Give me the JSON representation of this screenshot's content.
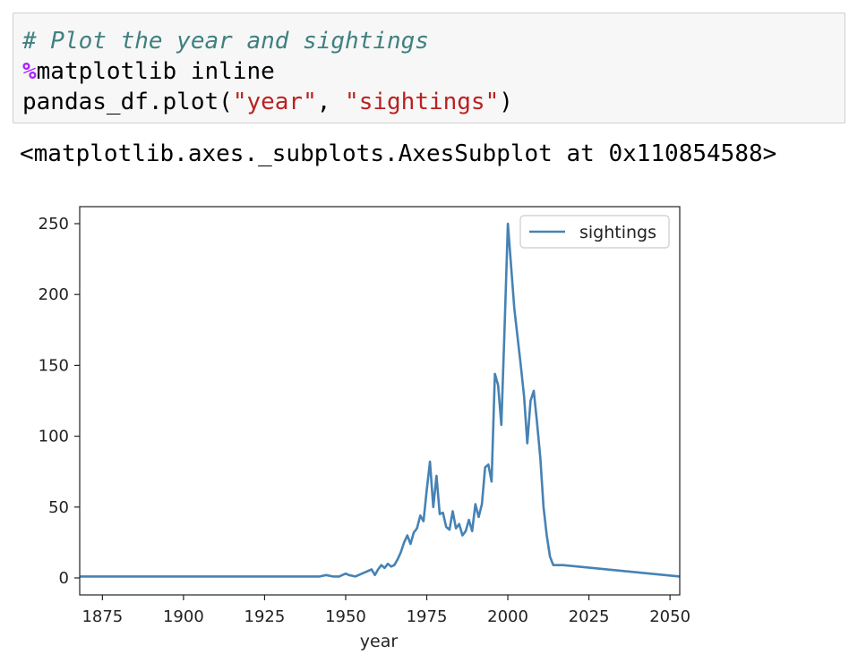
{
  "code": {
    "comment": "# Plot the year and sightings",
    "magic_symbol": "%",
    "magic_rest": "matplotlib inline",
    "call_prefix": "pandas_df.plot(",
    "arg1": "\"year\"",
    "sep": ", ",
    "arg2": "\"sightings\"",
    "call_suffix": ")"
  },
  "output": {
    "text": "<matplotlib.axes._subplots.AxesSubplot at 0x110854588>"
  },
  "chart_data": {
    "type": "line",
    "xlabel": "year",
    "ylabel": "",
    "xlim": [
      1868,
      2053
    ],
    "ylim": [
      -12,
      262
    ],
    "xticks": [
      1875,
      1900,
      1925,
      1950,
      1975,
      2000,
      2025,
      2050
    ],
    "yticks": [
      0,
      50,
      100,
      150,
      200,
      250
    ],
    "line_color": "#4682b4",
    "legend_position": "top-right",
    "series": [
      {
        "name": "sightings",
        "x": [
          1868,
          1942,
          1944,
          1946,
          1948,
          1950,
          1951,
          1953,
          1955,
          1956,
          1958,
          1959,
          1960,
          1961,
          1962,
          1963,
          1964,
          1965,
          1966,
          1967,
          1968,
          1969,
          1970,
          1971,
          1972,
          1973,
          1974,
          1975,
          1976,
          1977,
          1978,
          1979,
          1980,
          1981,
          1982,
          1983,
          1984,
          1985,
          1986,
          1987,
          1988,
          1989,
          1990,
          1991,
          1992,
          1993,
          1994,
          1995,
          1996,
          1997,
          1998,
          1999,
          2000,
          2001,
          2002,
          2003,
          2004,
          2005,
          2006,
          2007,
          2008,
          2009,
          2010,
          2011,
          2012,
          2013,
          2014,
          2017,
          2053
        ],
        "y": [
          1,
          1,
          2,
          1,
          1,
          3,
          2,
          1,
          3,
          4,
          6,
          2,
          6,
          9,
          7,
          10,
          8,
          9,
          13,
          18,
          25,
          30,
          24,
          32,
          35,
          44,
          40,
          62,
          82,
          50,
          72,
          45,
          46,
          36,
          34,
          47,
          35,
          38,
          30,
          33,
          41,
          33,
          52,
          43,
          52,
          78,
          80,
          68,
          144,
          136,
          108,
          176,
          250,
          220,
          190,
          170,
          150,
          128,
          95,
          125,
          132,
          110,
          85,
          50,
          30,
          15,
          9,
          9,
          1
        ]
      }
    ]
  }
}
